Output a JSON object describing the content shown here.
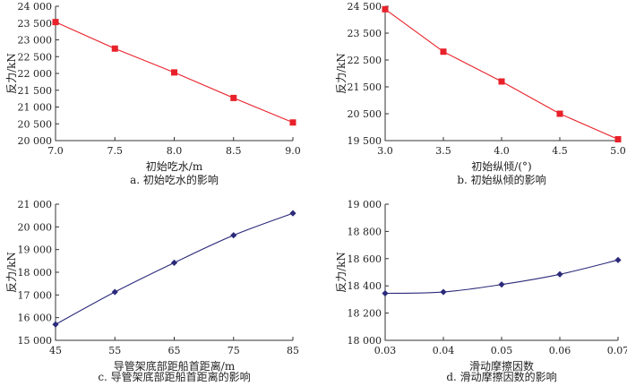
{
  "chart_data": [
    {
      "type": "line",
      "id": "a",
      "caption": "a. 初始吃水的影响",
      "xlabel": "初始吃水/m",
      "ylabel": "反力/kN",
      "xlim": [
        7.0,
        9.0
      ],
      "ylim": [
        20000,
        24000
      ],
      "x_ticks": [
        "7.0",
        "7.5",
        "8.0",
        "8.5",
        "9.0"
      ],
      "y_ticks": [
        "20 000",
        "20 500",
        "21 000",
        "21 500",
        "22 000",
        "22 500",
        "23 000",
        "23 500",
        "24 000"
      ],
      "x": [
        7.0,
        7.5,
        8.0,
        8.5,
        9.0
      ],
      "values": [
        23530,
        22740,
        22030,
        21270,
        20540
      ],
      "color": "#e8212a",
      "marker": "square"
    },
    {
      "type": "line",
      "id": "b",
      "caption": "b. 初始纵倾的影响",
      "xlabel": "初始纵倾/(°)",
      "ylabel": "反力/kN",
      "xlim": [
        3.0,
        5.0
      ],
      "ylim": [
        19500,
        24500
      ],
      "x_ticks": [
        "3.0",
        "3.5",
        "4.0",
        "4.5",
        "5.0"
      ],
      "y_ticks": [
        "19 500",
        "20 500",
        "21 500",
        "22 500",
        "23 500",
        "24 500"
      ],
      "x": [
        3.0,
        3.5,
        4.0,
        4.5,
        5.0
      ],
      "values": [
        24390,
        22810,
        21700,
        20500,
        19550
      ],
      "color": "#e8212a",
      "marker": "square"
    },
    {
      "type": "line",
      "id": "c",
      "caption": "c. 导管架底部距船首距离的影响",
      "xlabel": "导管架底部距船首距离/m",
      "ylabel": "反力/kN",
      "xlim": [
        45,
        85
      ],
      "ylim": [
        15000,
        21000
      ],
      "x_ticks": [
        "45",
        "55",
        "65",
        "75",
        "85"
      ],
      "y_ticks": [
        "15 000",
        "16 000",
        "17 000",
        "18 000",
        "19 000",
        "20 000",
        "21 000"
      ],
      "x": [
        45,
        55,
        65,
        75,
        85
      ],
      "values": [
        15700,
        17130,
        18420,
        19630,
        20600
      ],
      "color": "#2b2a7a",
      "marker": "diamond"
    },
    {
      "type": "line",
      "id": "d",
      "caption": "d. 滑动摩擦因数的影响",
      "xlabel": "滑动摩擦因数",
      "ylabel": "反力/kN",
      "xlim": [
        0.03,
        0.07
      ],
      "ylim": [
        18000,
        19000
      ],
      "x_ticks": [
        "0.03",
        "0.04",
        "0.05",
        "0.06",
        "0.07"
      ],
      "y_ticks": [
        "18 000",
        "18 200",
        "18 400",
        "18 600",
        "18 800",
        "19 000"
      ],
      "x": [
        0.03,
        0.04,
        0.05,
        0.06,
        0.07
      ],
      "values": [
        18345,
        18355,
        18410,
        18485,
        18590
      ],
      "color": "#2b2a7a",
      "marker": "diamond"
    }
  ]
}
